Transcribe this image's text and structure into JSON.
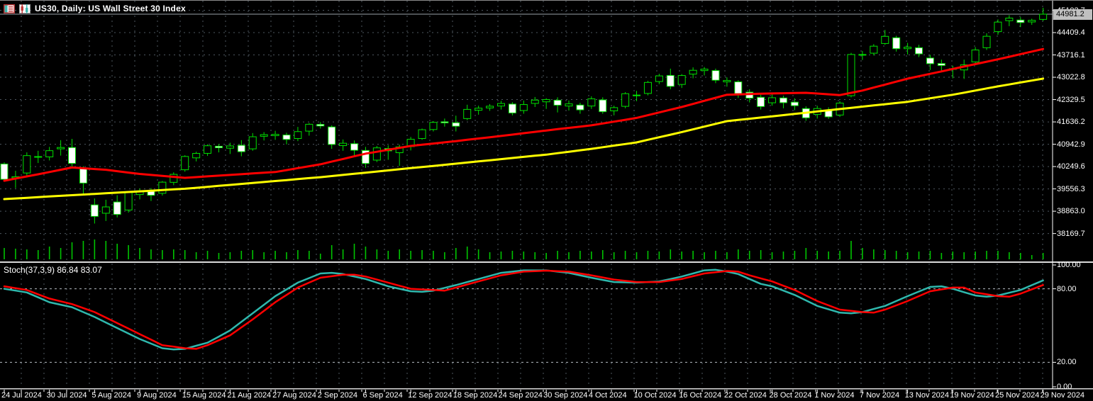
{
  "title_bar": {
    "symbol_title": "US30, Daily: US Wall Street 30 Index"
  },
  "colors": {
    "background": "#000000",
    "candle_outline": "#00e000",
    "bull_fill": "#000000",
    "bear_fill": "#ffffff",
    "volume": "#00c400",
    "ma_red": "#ff0000",
    "ma_yellow": "#ffff00",
    "stoch_main": "#2fb8ad",
    "stoch_signal": "#ff0000",
    "grid": "#4e5760",
    "levels": "#b8bec4",
    "axis_line": "#ffffff",
    "axis_text": "#ffffff",
    "separator": "#d9d9d9",
    "price_line": "#9aa2a8",
    "badge_bg": "#c0c0c0",
    "badge_text": "#000000"
  },
  "chart_data": {
    "type": "candlestick",
    "title": "US30, Daily: US Wall Street 30 Index",
    "symbol": "US30",
    "timeframe": "Daily",
    "bars": 93,
    "price_ticks": [
      "45102.7",
      "44409.4",
      "43716.1",
      "43022.8",
      "42329.5",
      "41636.2",
      "40942.9",
      "40249.6",
      "39556.3",
      "38863.0",
      "38169.7"
    ],
    "current_price": "44981.2",
    "x_labels": [
      "24 Jul 2024",
      "30 Jul 2024",
      "5 Aug 2024",
      "9 Aug 2024",
      "15 Aug 2024",
      "21 Aug 2024",
      "27 Aug 2024",
      "2 Sep 2024",
      "6 Sep 2024",
      "12 Sep 2024",
      "18 Sep 2024",
      "24 Sep 2024",
      "30 Sep 2024",
      "4 Oct 2024",
      "10 Oct 2024",
      "16 Oct 2024",
      "22 Oct 2024",
      "28 Oct 2024",
      "1 Nov 2024",
      "7 Nov 2024",
      "13 Nov 2024",
      "19 Nov 2024",
      "25 Nov 2024",
      "29 Nov 2024"
    ],
    "bars_per_x_label": 4,
    "grid": true,
    "ohlcv": [
      [
        40330,
        40380,
        39780,
        39853,
        16
      ],
      [
        39900,
        40120,
        39580,
        39935,
        15
      ],
      [
        40050,
        40690,
        39960,
        40589,
        14
      ],
      [
        40560,
        40740,
        40360,
        40539,
        13
      ],
      [
        40550,
        40860,
        40440,
        40743,
        18
      ],
      [
        40800,
        41070,
        40590,
        40842,
        16
      ],
      [
        40840,
        41110,
        40200,
        40347,
        24
      ],
      [
        40200,
        40260,
        39400,
        39737,
        26
      ],
      [
        39060,
        39260,
        38480,
        38703,
        28
      ],
      [
        38800,
        39220,
        38560,
        38997,
        26
      ],
      [
        39150,
        39360,
        38670,
        38763,
        22
      ],
      [
        38900,
        39480,
        38820,
        39446,
        20
      ],
      [
        39380,
        39570,
        39230,
        39497,
        16
      ],
      [
        39480,
        39580,
        39180,
        39357,
        14
      ],
      [
        39420,
        39800,
        39350,
        39765,
        13
      ],
      [
        39760,
        40070,
        39670,
        40008,
        14
      ],
      [
        40150,
        40600,
        40090,
        40563,
        13
      ],
      [
        40520,
        40710,
        40410,
        40659,
        10
      ],
      [
        40660,
        40940,
        40580,
        40896,
        12
      ],
      [
        40880,
        40950,
        40690,
        40834,
        9
      ],
      [
        40820,
        40990,
        40640,
        40890,
        10
      ],
      [
        40910,
        41070,
        40570,
        40712,
        12
      ],
      [
        40800,
        41290,
        40740,
        41175,
        13
      ],
      [
        41190,
        41320,
        41060,
        41240,
        10
      ],
      [
        41210,
        41360,
        41080,
        41250,
        12
      ],
      [
        41230,
        41300,
        40940,
        41091,
        10
      ],
      [
        41120,
        41480,
        41040,
        41335,
        13
      ],
      [
        41350,
        41600,
        41210,
        41563,
        12
      ],
      [
        41560,
        41630,
        41430,
        41510,
        8
      ],
      [
        41480,
        41530,
        40800,
        40936,
        20
      ],
      [
        40900,
        41090,
        40740,
        40974,
        14
      ],
      [
        40960,
        41060,
        40580,
        40756,
        22
      ],
      [
        40750,
        40860,
        40210,
        40345,
        18
      ],
      [
        40450,
        40890,
        40390,
        40830,
        14
      ],
      [
        40810,
        40910,
        40460,
        40737,
        12
      ],
      [
        40680,
        40930,
        40270,
        40861,
        14
      ],
      [
        40870,
        41170,
        40750,
        41097,
        12
      ],
      [
        41120,
        41430,
        41080,
        41394,
        13
      ],
      [
        41400,
        41660,
        41340,
        41622,
        12
      ],
      [
        41640,
        41740,
        41490,
        41606,
        10
      ],
      [
        41610,
        41830,
        41340,
        41503,
        16
      ],
      [
        41740,
        42170,
        41690,
        42025,
        18
      ],
      [
        42000,
        42140,
        41860,
        42063,
        14
      ],
      [
        42070,
        42190,
        41980,
        42124,
        10
      ],
      [
        42130,
        42290,
        42020,
        42208,
        11
      ],
      [
        42190,
        42250,
        41840,
        41914,
        12
      ],
      [
        41990,
        42300,
        41890,
        42175,
        11
      ],
      [
        42210,
        42410,
        42100,
        42313,
        10
      ],
      [
        42260,
        42370,
        42040,
        42330,
        9
      ],
      [
        42310,
        42400,
        41930,
        42156,
        12
      ],
      [
        42130,
        42300,
        41990,
        42196,
        10
      ],
      [
        42160,
        42230,
        41890,
        42011,
        12
      ],
      [
        42130,
        42430,
        42040,
        42352,
        11
      ],
      [
        42320,
        42400,
        41890,
        41954,
        13
      ],
      [
        41980,
        42140,
        41840,
        42080,
        10
      ],
      [
        42120,
        42560,
        42060,
        42512,
        12
      ],
      [
        42470,
        42600,
        42280,
        42454,
        10
      ],
      [
        42520,
        42910,
        42460,
        42863,
        12
      ],
      [
        42890,
        43130,
        42810,
        43065,
        11
      ],
      [
        43080,
        43290,
        42650,
        42740,
        14
      ],
      [
        42800,
        43120,
        42690,
        43077,
        11
      ],
      [
        43120,
        43330,
        42990,
        43239,
        12
      ],
      [
        43230,
        43340,
        43080,
        43275,
        10
      ],
      [
        43230,
        43290,
        42840,
        42931,
        12
      ],
      [
        42880,
        43020,
        42730,
        42924,
        10
      ],
      [
        42880,
        42930,
        42380,
        42514,
        14
      ],
      [
        42560,
        42650,
        42240,
        42374,
        12
      ],
      [
        42400,
        42500,
        42020,
        42114,
        13
      ],
      [
        42230,
        42490,
        42140,
        42387,
        10
      ],
      [
        42380,
        42450,
        42060,
        42233,
        11
      ],
      [
        42250,
        42370,
        42000,
        42141,
        12
      ],
      [
        42050,
        42120,
        41670,
        41763,
        16
      ],
      [
        41870,
        42140,
        41740,
        42052,
        12
      ],
      [
        42000,
        42090,
        41730,
        41794,
        11
      ],
      [
        41850,
        42280,
        41790,
        42221,
        12
      ],
      [
        42450,
        43780,
        42400,
        43729,
        26
      ],
      [
        43730,
        43840,
        43560,
        43729,
        16
      ],
      [
        43770,
        44050,
        43700,
        43988,
        14
      ],
      [
        44070,
        44490,
        44030,
        44293,
        13
      ],
      [
        44250,
        44310,
        43820,
        43910,
        12
      ],
      [
        43910,
        44090,
        43730,
        43958,
        10
      ],
      [
        43940,
        44030,
        43650,
        43750,
        11
      ],
      [
        43620,
        43720,
        43250,
        43444,
        12
      ],
      [
        43450,
        43570,
        43220,
        43389,
        9
      ],
      [
        43290,
        43380,
        42990,
        43268,
        11
      ],
      [
        43250,
        43570,
        42970,
        43408,
        10
      ],
      [
        43500,
        43960,
        43430,
        43870,
        11
      ],
      [
        43940,
        44390,
        43870,
        44296,
        12
      ],
      [
        44440,
        44820,
        44340,
        44736,
        12
      ],
      [
        44780,
        44950,
        44610,
        44860,
        10
      ],
      [
        44800,
        44890,
        44580,
        44722,
        9
      ],
      [
        44740,
        44840,
        44650,
        44790,
        6
      ],
      [
        44820,
        45180,
        44770,
        44981.2,
        9
      ]
    ],
    "ma_red": {
      "name": "moving-average-fast",
      "points": [
        [
          0,
          39810
        ],
        [
          3,
          40010
        ],
        [
          6,
          40220
        ],
        [
          9,
          40150
        ],
        [
          12,
          40020
        ],
        [
          16,
          39900
        ],
        [
          20,
          39990
        ],
        [
          24,
          40080
        ],
        [
          28,
          40320
        ],
        [
          32,
          40650
        ],
        [
          36,
          40890
        ],
        [
          40,
          41040
        ],
        [
          44,
          41200
        ],
        [
          48,
          41370
        ],
        [
          52,
          41530
        ],
        [
          56,
          41760
        ],
        [
          60,
          42100
        ],
        [
          64,
          42480
        ],
        [
          68,
          42520
        ],
        [
          71,
          42540
        ],
        [
          74,
          42470
        ],
        [
          76,
          42610
        ],
        [
          80,
          42980
        ],
        [
          84,
          43280
        ],
        [
          88,
          43580
        ],
        [
          92,
          43900
        ]
      ]
    },
    "ma_yellow": {
      "name": "moving-average-slow",
      "points": [
        [
          0,
          39240
        ],
        [
          4,
          39320
        ],
        [
          8,
          39400
        ],
        [
          12,
          39480
        ],
        [
          16,
          39560
        ],
        [
          20,
          39680
        ],
        [
          24,
          39800
        ],
        [
          28,
          39920
        ],
        [
          32,
          40060
        ],
        [
          36,
          40200
        ],
        [
          40,
          40340
        ],
        [
          44,
          40480
        ],
        [
          48,
          40620
        ],
        [
          52,
          40800
        ],
        [
          56,
          41000
        ],
        [
          60,
          41320
        ],
        [
          64,
          41660
        ],
        [
          68,
          41810
        ],
        [
          72,
          41960
        ],
        [
          76,
          42110
        ],
        [
          80,
          42260
        ],
        [
          84,
          42480
        ],
        [
          88,
          42740
        ],
        [
          92,
          42980
        ]
      ]
    },
    "indicator": {
      "name": "Stochastic",
      "label": "Stoch(37,3,9) 86.84 83.07",
      "main_value": 86.84,
      "signal_value": 83.07,
      "level_labels": [
        "100.00",
        "80.00",
        "20.00",
        "0.00"
      ],
      "level_values": [
        100,
        80,
        20,
        0
      ],
      "main": [
        [
          0,
          80
        ],
        [
          2,
          77
        ],
        [
          4,
          69
        ],
        [
          6,
          65
        ],
        [
          8,
          57
        ],
        [
          10,
          48
        ],
        [
          12,
          39
        ],
        [
          14,
          31.5
        ],
        [
          15,
          30.5
        ],
        [
          16,
          31
        ],
        [
          18,
          36
        ],
        [
          20,
          46
        ],
        [
          22,
          60
        ],
        [
          24,
          74
        ],
        [
          26,
          85
        ],
        [
          28,
          92.5
        ],
        [
          29,
          93
        ],
        [
          30,
          92
        ],
        [
          32,
          88
        ],
        [
          34,
          82
        ],
        [
          36,
          78
        ],
        [
          37,
          77.5
        ],
        [
          38,
          78.5
        ],
        [
          40,
          83
        ],
        [
          42,
          88
        ],
        [
          44,
          93
        ],
        [
          46,
          95
        ],
        [
          48,
          95
        ],
        [
          50,
          93
        ],
        [
          52,
          89
        ],
        [
          54,
          85.5
        ],
        [
          56,
          85
        ],
        [
          58,
          86
        ],
        [
          60,
          90
        ],
        [
          62,
          95
        ],
        [
          63,
          95.5
        ],
        [
          64,
          94
        ],
        [
          65,
          92
        ],
        [
          66,
          88
        ],
        [
          67,
          84
        ],
        [
          68,
          82
        ],
        [
          70,
          75
        ],
        [
          72,
          66
        ],
        [
          74,
          60.5
        ],
        [
          75,
          60
        ],
        [
          76,
          61
        ],
        [
          78,
          66
        ],
        [
          80,
          74
        ],
        [
          82,
          81.5
        ],
        [
          83,
          82
        ],
        [
          84,
          80
        ],
        [
          86,
          74.5
        ],
        [
          87,
          73.5
        ],
        [
          88,
          74.5
        ],
        [
          90,
          79
        ],
        [
          92,
          86.84
        ]
      ],
      "signal": [
        [
          0,
          82
        ],
        [
          2,
          79
        ],
        [
          4,
          72
        ],
        [
          6,
          67.5
        ],
        [
          8,
          61
        ],
        [
          10,
          52
        ],
        [
          12,
          43
        ],
        [
          14,
          34
        ],
        [
          16,
          31.5
        ],
        [
          17,
          31
        ],
        [
          18,
          34
        ],
        [
          20,
          42
        ],
        [
          22,
          55
        ],
        [
          24,
          69
        ],
        [
          26,
          81
        ],
        [
          28,
          89
        ],
        [
          30,
          91.5
        ],
        [
          31,
          91.5
        ],
        [
          32,
          90
        ],
        [
          34,
          85
        ],
        [
          36,
          80
        ],
        [
          38,
          79
        ],
        [
          39,
          78.5
        ],
        [
          40,
          81
        ],
        [
          42,
          86
        ],
        [
          44,
          91
        ],
        [
          46,
          94
        ],
        [
          48,
          94.8
        ],
        [
          50,
          94
        ],
        [
          52,
          91
        ],
        [
          54,
          87.5
        ],
        [
          56,
          85.5
        ],
        [
          58,
          85.5
        ],
        [
          60,
          88
        ],
        [
          62,
          92.5
        ],
        [
          64,
          94.5
        ],
        [
          65,
          94
        ],
        [
          66,
          91
        ],
        [
          68,
          86
        ],
        [
          70,
          79
        ],
        [
          72,
          70
        ],
        [
          74,
          63
        ],
        [
          76,
          61
        ],
        [
          77,
          60.5
        ],
        [
          78,
          63
        ],
        [
          80,
          70
        ],
        [
          82,
          78
        ],
        [
          84,
          81
        ],
        [
          85,
          81
        ],
        [
          86,
          77
        ],
        [
          88,
          74
        ],
        [
          89,
          73.5
        ],
        [
          90,
          76
        ],
        [
          92,
          83.07
        ]
      ]
    }
  }
}
